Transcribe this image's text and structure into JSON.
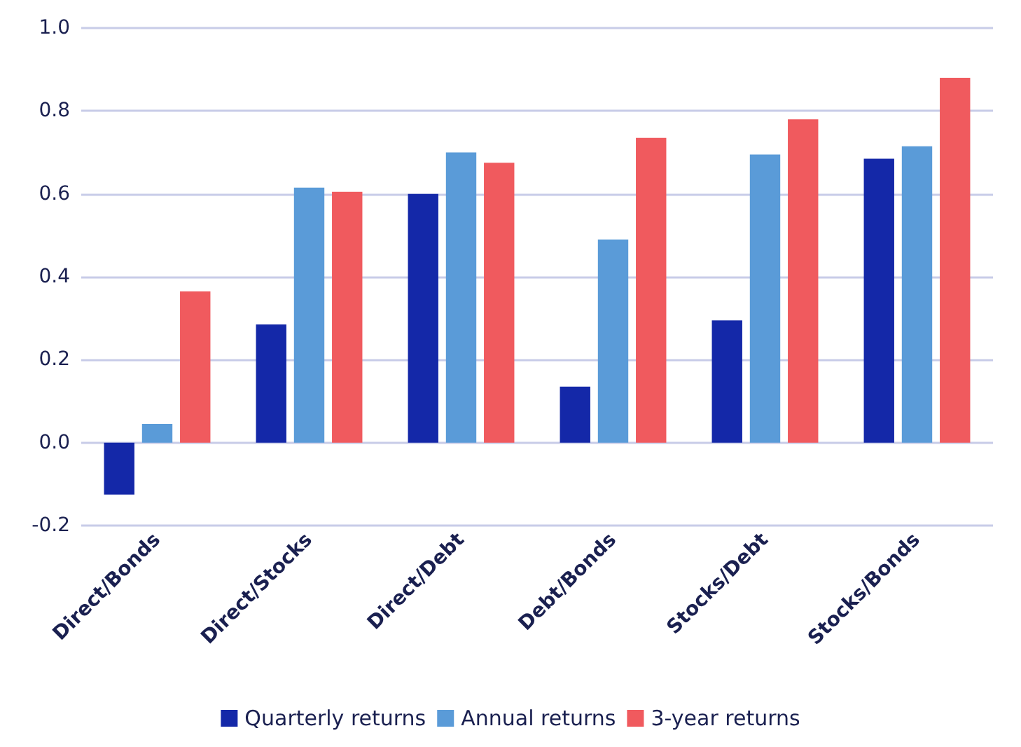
{
  "chart_data": {
    "type": "bar",
    "categories": [
      "Direct/Bonds",
      "Direct/Stocks",
      "Direct/Debt",
      "Debt/Bonds",
      "Stocks/Debt",
      "Stocks/Bonds"
    ],
    "series": [
      {
        "name": "Quarterly returns",
        "color": "#1428a8",
        "values": [
          -0.125,
          0.285,
          0.6,
          0.135,
          0.295,
          0.685
        ]
      },
      {
        "name": "Annual returns",
        "color": "#5a9bd8",
        "values": [
          0.045,
          0.615,
          0.7,
          0.49,
          0.695,
          0.715
        ]
      },
      {
        "name": "3-year returns",
        "color": "#f05a5e",
        "values": [
          0.365,
          0.605,
          0.675,
          0.735,
          0.78,
          0.88
        ]
      }
    ],
    "ylim": [
      -0.2,
      1.0
    ],
    "yticks": [
      -0.2,
      {
        "value": 0,
        "label": "0.0"
      },
      0.2,
      0.4,
      0.6,
      0.8,
      {
        "value": 1,
        "label": "1.0"
      }
    ],
    "grid": "y",
    "legend": "bottom"
  }
}
